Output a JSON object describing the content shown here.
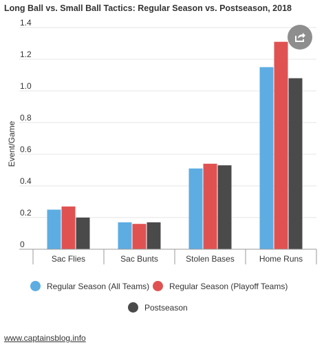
{
  "header": {
    "title": "Long Ball vs. Small Ball Tactics: Regular Season vs. Postseason, 2018"
  },
  "chart_data": {
    "type": "bar",
    "categories": [
      "Sac Flies",
      "Sac Bunts",
      "Stolen Bases",
      "Home Runs"
    ],
    "series": [
      {
        "name": "Regular Season (All Teams)",
        "color": "#5dade2",
        "values": [
          0.25,
          0.17,
          0.51,
          1.15
        ]
      },
      {
        "name": "Regular Season (Playoff Teams)",
        "color": "#e05252",
        "values": [
          0.27,
          0.16,
          0.54,
          1.31
        ]
      },
      {
        "name": "Postseason",
        "color": "#4a4a4a",
        "values": [
          0.2,
          0.17,
          0.53,
          1.08
        ]
      }
    ],
    "ylabel": "Event/Game",
    "xlabel": "",
    "ylim": [
      0,
      1.4
    ],
    "yticks": [
      0,
      0.2,
      0.4,
      0.6,
      0.8,
      1.0,
      1.2,
      1.4
    ],
    "ytick_labels": [
      "0",
      "0.2",
      "0.4",
      "0.6",
      "0.8",
      "1.0",
      "1.2",
      "1.4"
    ],
    "grid": true,
    "legend_position": "bottom"
  },
  "share": {
    "icon": "share-icon"
  },
  "source": {
    "text": "www.captainsblog.info"
  }
}
